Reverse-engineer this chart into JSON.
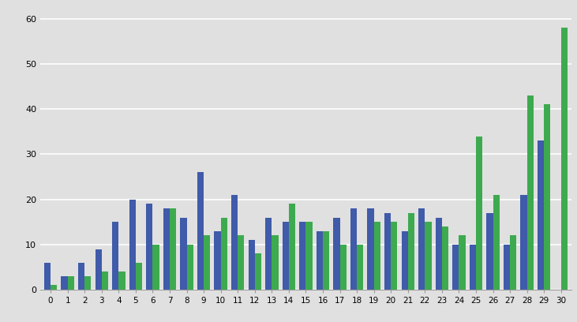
{
  "categories": [
    0,
    1,
    2,
    3,
    4,
    5,
    6,
    7,
    8,
    9,
    10,
    11,
    12,
    13,
    14,
    15,
    16,
    17,
    18,
    19,
    20,
    21,
    22,
    23,
    24,
    25,
    26,
    27,
    28,
    29,
    30
  ],
  "blue_values": [
    6,
    3,
    6,
    9,
    15,
    20,
    19,
    18,
    16,
    26,
    13,
    21,
    11,
    16,
    15,
    15,
    13,
    16,
    18,
    18,
    17,
    13,
    18,
    16,
    10,
    10,
    17,
    10,
    21,
    33,
    0
  ],
  "green_values": [
    1,
    3,
    3,
    4,
    4,
    6,
    10,
    18,
    10,
    12,
    16,
    12,
    8,
    12,
    19,
    15,
    13,
    10,
    10,
    15,
    15,
    17,
    15,
    14,
    12,
    34,
    21,
    12,
    43,
    41,
    58
  ],
  "blue_color": "#3F5BA9",
  "green_color": "#3DAA4F",
  "ylim": [
    0,
    62
  ],
  "yticks": [
    0,
    10,
    20,
    30,
    40,
    50,
    60
  ],
  "background_color": "#E0E0E0",
  "bar_width": 0.38,
  "figwidth": 7.31,
  "figheight": 4.08,
  "dpi": 100
}
